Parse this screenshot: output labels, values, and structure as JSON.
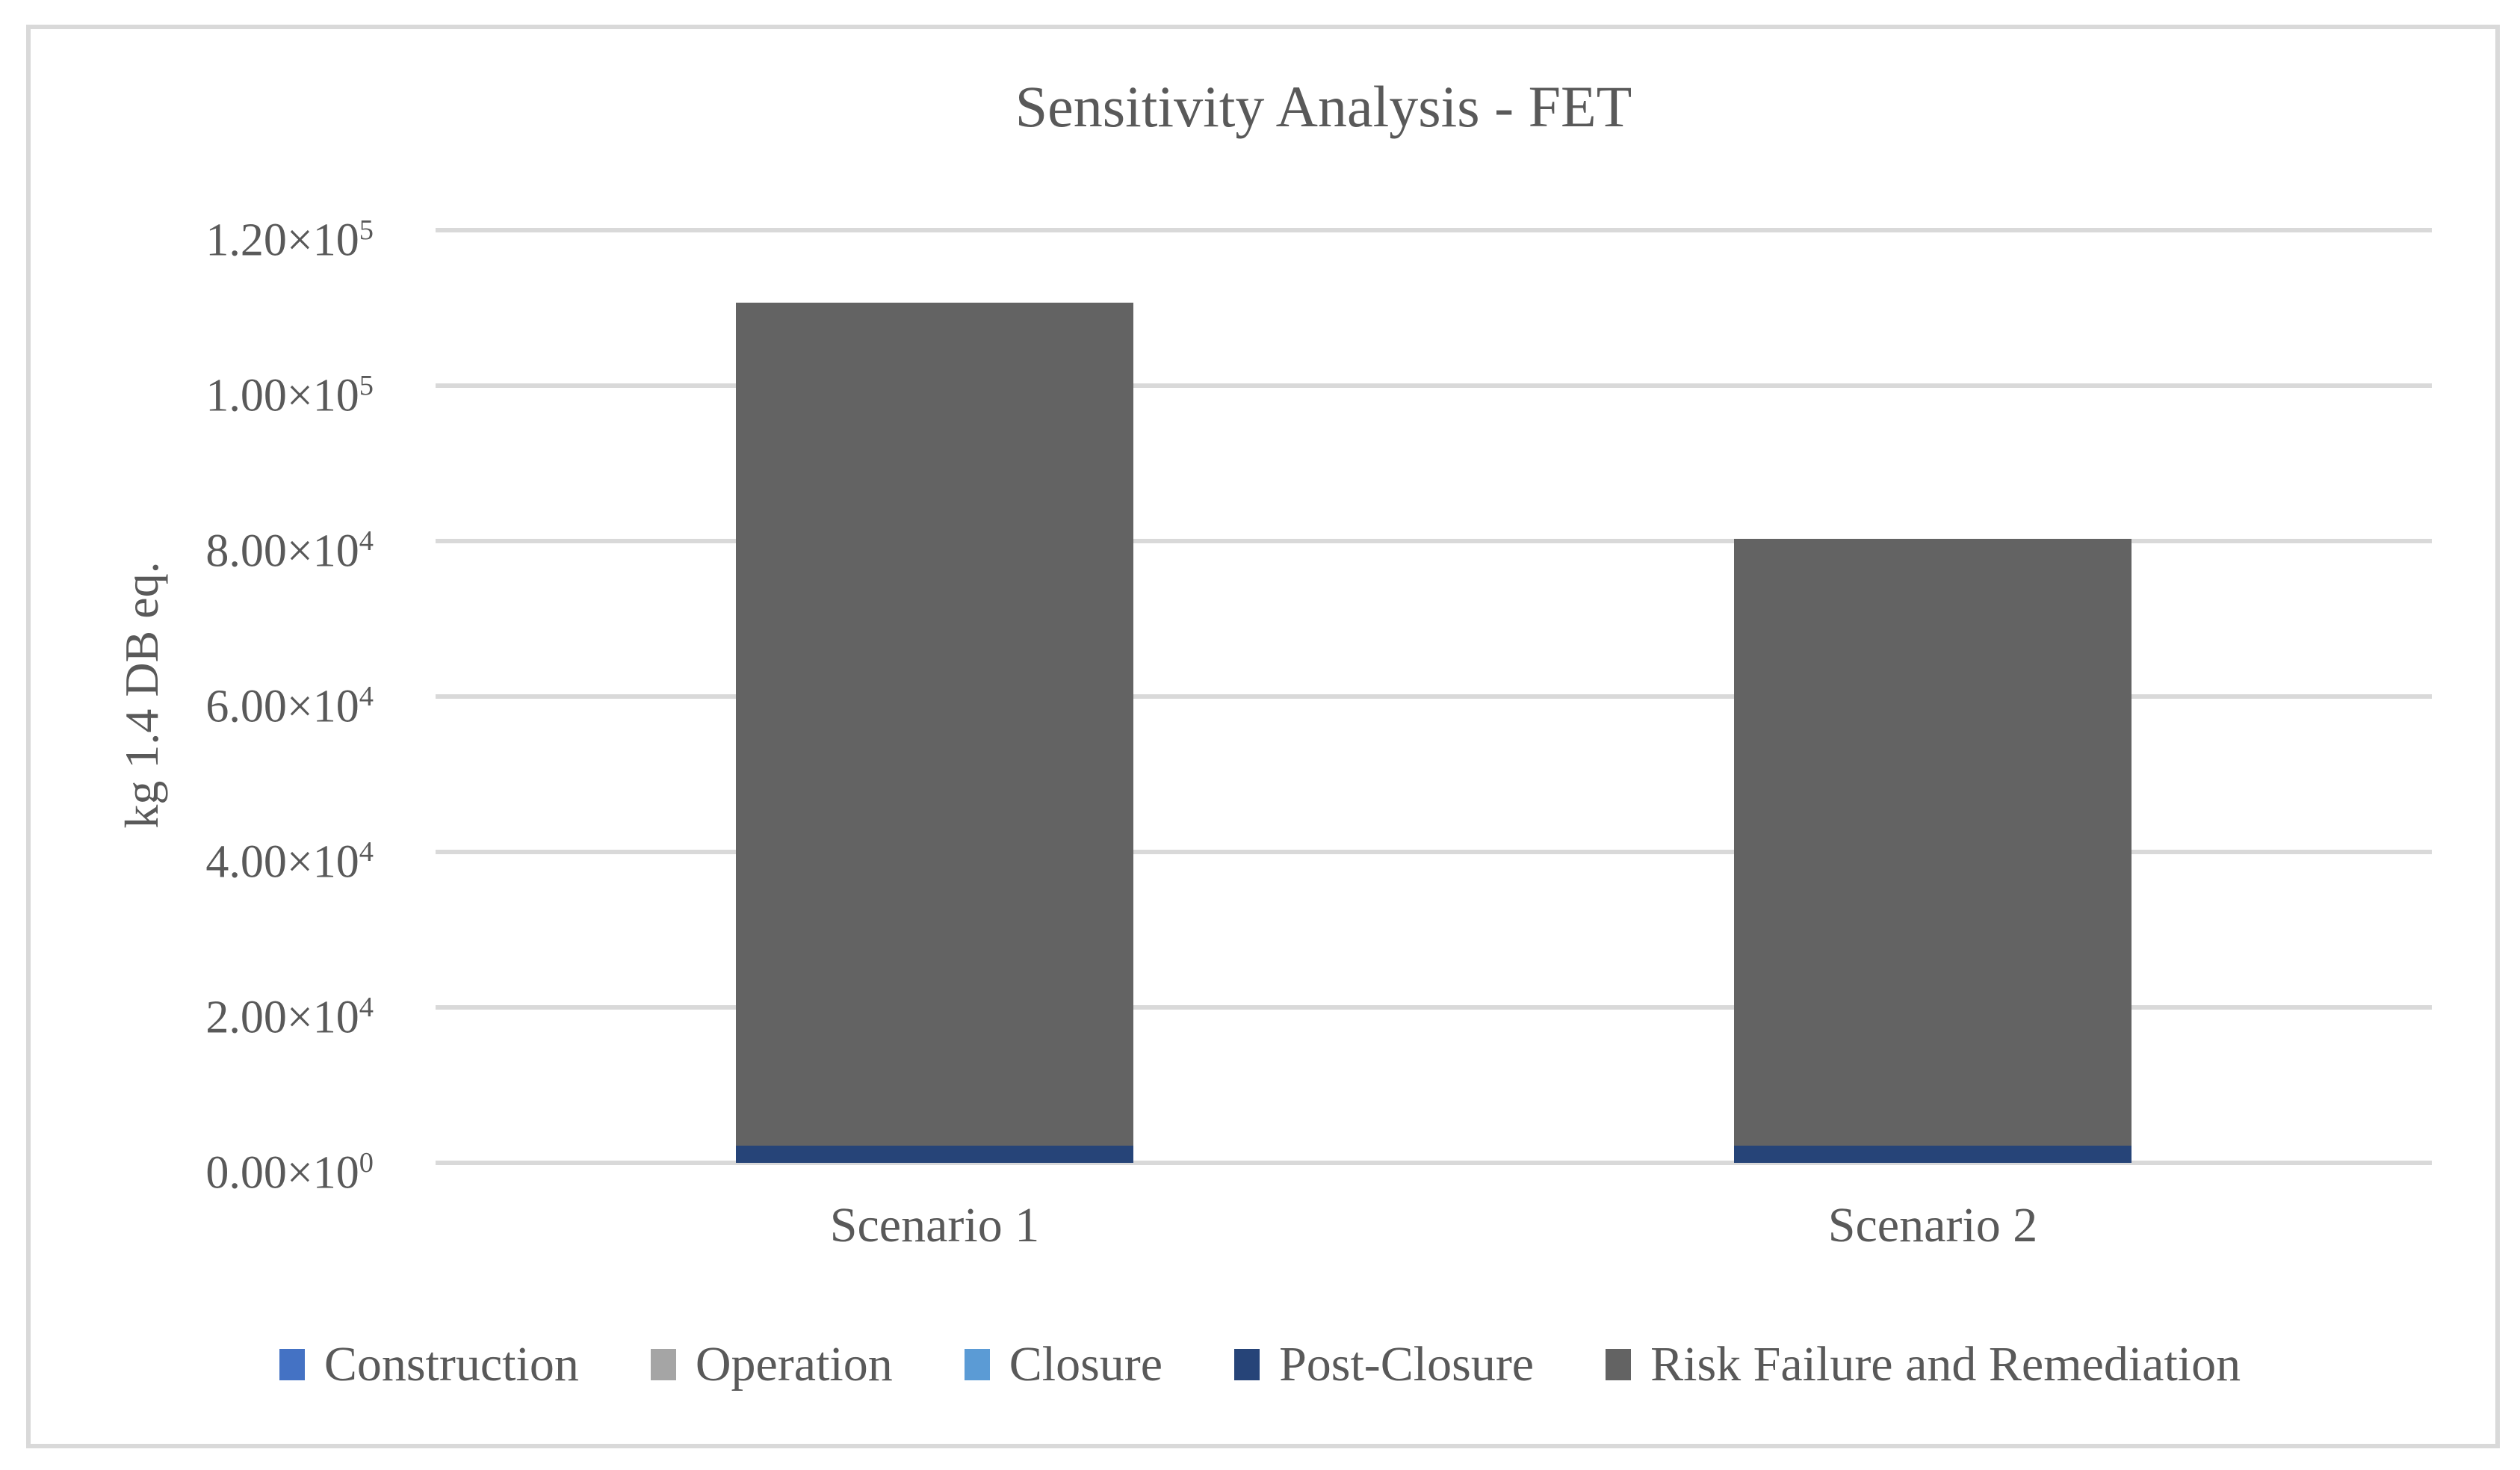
{
  "title_text": "Sensitivity Analysis - FET",
  "frame": {
    "border_color": "#D9D9D9"
  },
  "text_color": "#595959",
  "chart_data": {
    "type": "bar",
    "subtype": "stacked",
    "title": "Sensitivity Analysis - FET",
    "xlabel": "",
    "ylabel": "kg 1.4 DB eq.",
    "categories": [
      "Scenario 1",
      "Scenario 2"
    ],
    "series": [
      {
        "name": "Construction",
        "color": "#4472C4",
        "values": [
          0,
          0
        ]
      },
      {
        "name": "Operation",
        "color": "#A5A5A5",
        "values": [
          0,
          0
        ]
      },
      {
        "name": "Closure",
        "color": "#5B9BD5",
        "values": [
          0,
          0
        ]
      },
      {
        "name": "Post-Closure",
        "color": "#264478",
        "values": [
          2200,
          2200
        ]
      },
      {
        "name": "Risk Failure and Remediation",
        "color": "#636363",
        "values": [
          108500,
          78100
        ]
      }
    ],
    "totals": [
      110700,
      80300
    ],
    "ylim": [
      0,
      120000
    ],
    "yticks": [
      {
        "value": 0,
        "label": "0.00×10^0"
      },
      {
        "value": 20000,
        "label": "2.00×10^4"
      },
      {
        "value": 40000,
        "label": "4.00×10^4"
      },
      {
        "value": 60000,
        "label": "6.00×10^4"
      },
      {
        "value": 80000,
        "label": "8.00×10^4"
      },
      {
        "value": 100000,
        "label": "1.00×10^5"
      },
      {
        "value": 120000,
        "label": "1.20×10^5"
      }
    ],
    "grid": true,
    "gridline_color": "#D9D9D9",
    "legend_position": "bottom"
  }
}
